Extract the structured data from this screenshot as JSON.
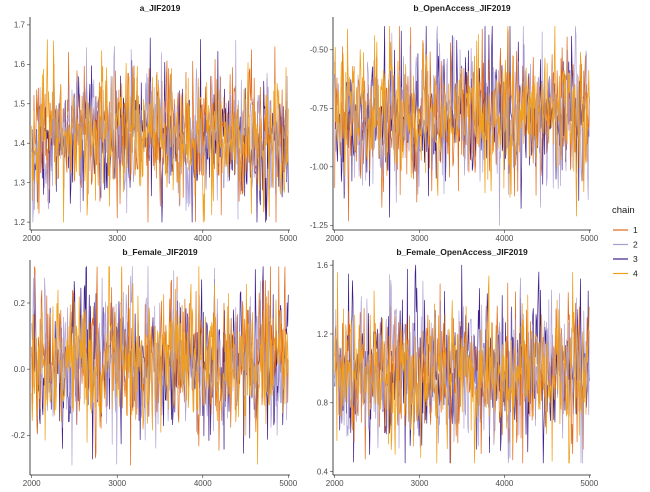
{
  "chart_data": [
    {
      "type": "line",
      "title": "a_JIF2019",
      "x_range": [
        2000,
        5000
      ],
      "xlim": [
        1980,
        5020
      ],
      "x_ticks": [
        "2000",
        "3000",
        "4000",
        "5000"
      ],
      "y_ticks": [
        "1.2",
        "1.3",
        "1.4",
        "1.5",
        "1.6",
        "1.7"
      ],
      "ylim": [
        1.18,
        1.72
      ],
      "center": 1.42,
      "spread": 0.065,
      "extremes": [
        1.2,
        1.69
      ],
      "series": [
        {
          "name": "1",
          "color": "#e06a1a"
        },
        {
          "name": "2",
          "color": "#a99ad0"
        },
        {
          "name": "3",
          "color": "#3f1f8c"
        },
        {
          "name": "4",
          "color": "#f0a020"
        }
      ]
    },
    {
      "type": "line",
      "title": "b_OpenAccess_JIF2019",
      "x_range": [
        2000,
        5000
      ],
      "xlim": [
        1980,
        5020
      ],
      "x_ticks": [
        "2000",
        "3000",
        "4000",
        "5000"
      ],
      "y_ticks": [
        "-1.25",
        "-1.00",
        "-0.75",
        "-0.50"
      ],
      "ylim": [
        -1.27,
        -0.36
      ],
      "center": -0.78,
      "spread": 0.11,
      "extremes": [
        -1.25,
        -0.4
      ],
      "series": [
        {
          "name": "1",
          "color": "#e06a1a"
        },
        {
          "name": "2",
          "color": "#a99ad0"
        },
        {
          "name": "3",
          "color": "#3f1f8c"
        },
        {
          "name": "4",
          "color": "#f0a020"
        }
      ]
    },
    {
      "type": "line",
      "title": "b_Female_JIF2019",
      "x_range": [
        2000,
        5000
      ],
      "xlim": [
        1980,
        5020
      ],
      "x_ticks": [
        "2000",
        "3000",
        "4000",
        "5000"
      ],
      "y_ticks": [
        "-0.2",
        "0.0",
        "0.2"
      ],
      "ylim": [
        -0.32,
        0.33
      ],
      "center": 0.02,
      "spread": 0.085,
      "extremes": [
        -0.29,
        0.31
      ],
      "series": [
        {
          "name": "1",
          "color": "#e06a1a"
        },
        {
          "name": "2",
          "color": "#a99ad0"
        },
        {
          "name": "3",
          "color": "#3f1f8c"
        },
        {
          "name": "4",
          "color": "#f0a020"
        }
      ]
    },
    {
      "type": "line",
      "title": "b_Female_OpenAccess_JIF2019",
      "x_range": [
        2000,
        5000
      ],
      "xlim": [
        1980,
        5020
      ],
      "x_ticks": [
        "2000",
        "3000",
        "4000",
        "5000"
      ],
      "y_ticks": [
        "0.4",
        "0.8",
        "1.2",
        "1.6"
      ],
      "ylim": [
        0.38,
        1.63
      ],
      "center": 0.98,
      "spread": 0.16,
      "extremes": [
        0.45,
        1.6
      ],
      "series": [
        {
          "name": "1",
          "color": "#e06a1a"
        },
        {
          "name": "2",
          "color": "#a99ad0"
        },
        {
          "name": "3",
          "color": "#3f1f8c"
        },
        {
          "name": "4",
          "color": "#f0a020"
        }
      ]
    }
  ],
  "legend": {
    "title": "chain",
    "placement": "right",
    "items": [
      {
        "label": "1",
        "color": "#e06a1a"
      },
      {
        "label": "2",
        "color": "#a99ad0"
      },
      {
        "label": "3",
        "color": "#3f1f8c"
      },
      {
        "label": "4",
        "color": "#f0a020"
      }
    ]
  }
}
